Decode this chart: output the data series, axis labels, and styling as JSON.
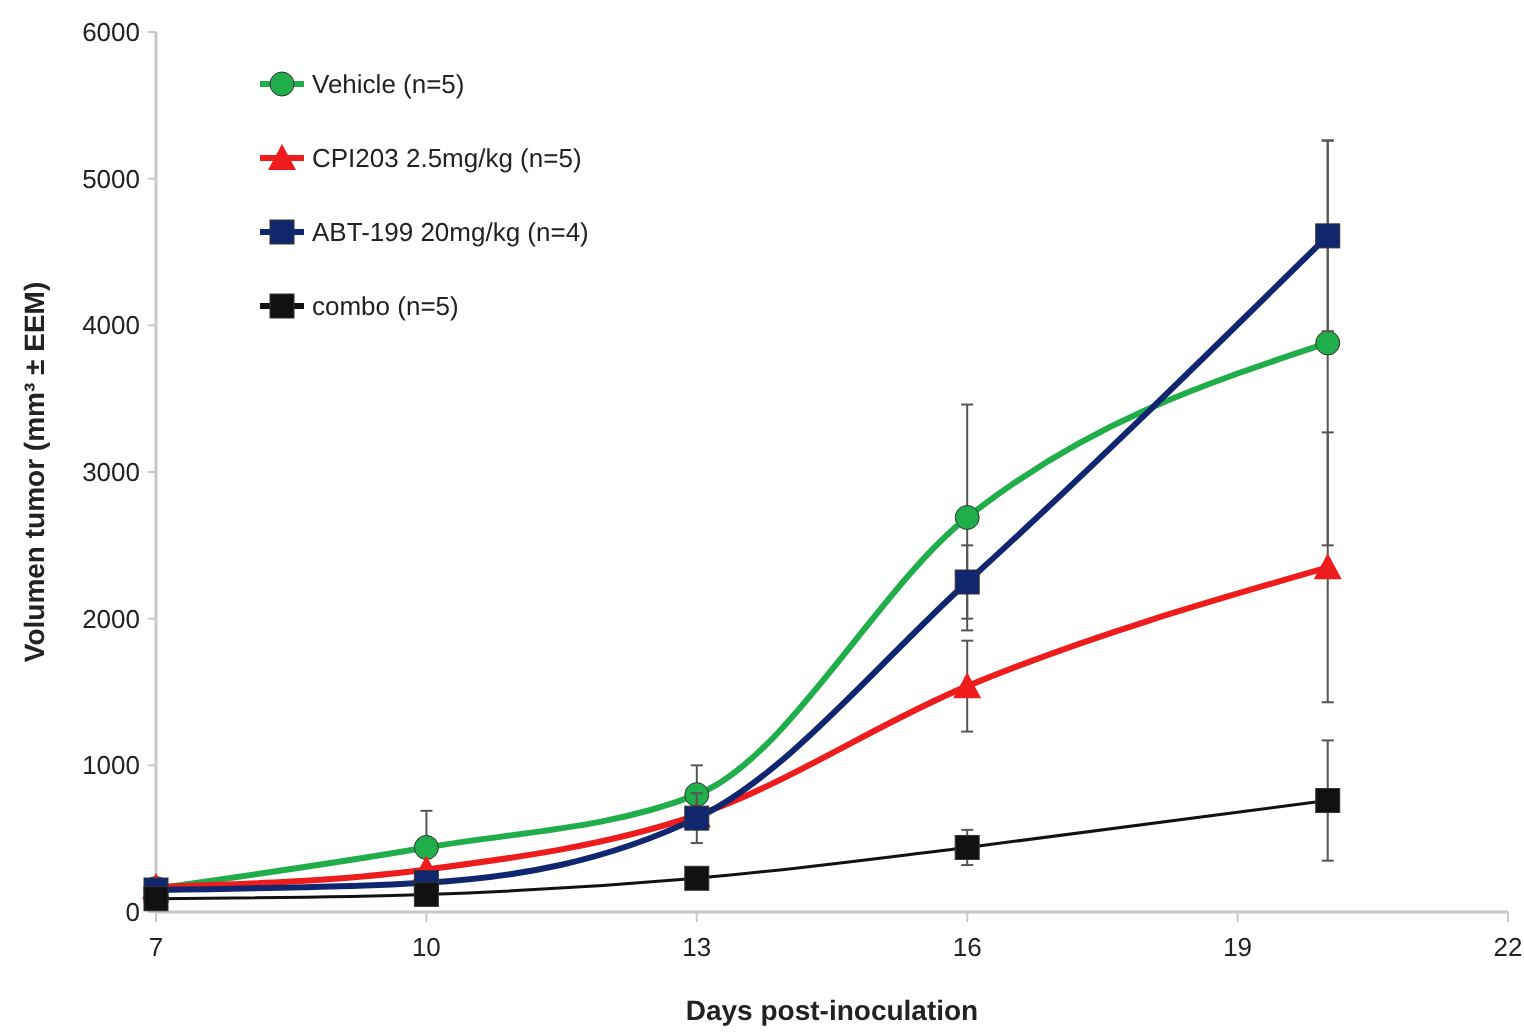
{
  "chart_data": {
    "type": "line",
    "xlabel": "Days post-inoculation",
    "ylabel": "Volumen tumor (mm³ ± EEM)",
    "x": [
      7,
      10,
      13,
      16,
      20
    ],
    "xlim": [
      7,
      22
    ],
    "xticks": [
      7,
      10,
      13,
      16,
      19,
      22
    ],
    "ylim": [
      0,
      6000
    ],
    "yticks": [
      0,
      1000,
      2000,
      3000,
      4000,
      5000,
      6000
    ],
    "grid": false,
    "legend": "top left",
    "series": [
      {
        "name": "Vehicle (n=5)",
        "color": "#1fae4a",
        "marker": "circle",
        "values": [
          160,
          440,
          800,
          2690,
          3880
        ],
        "errors": [
          null,
          250,
          200,
          770,
          1380
        ]
      },
      {
        "name": "CPI203 2.5mg/kg (n=5)",
        "color": "#ee1c1c",
        "marker": "triangle",
        "values": [
          170,
          290,
          660,
          1540,
          2350
        ],
        "errors": [
          null,
          null,
          null,
          310,
          920
        ]
      },
      {
        "name": "ABT-199 20mg/kg (n=4)",
        "color": "#10266e",
        "marker": "square",
        "values": [
          150,
          200,
          640,
          2250,
          4610
        ],
        "errors": [
          null,
          null,
          170,
          250,
          650
        ]
      },
      {
        "name": "combo (n=5)",
        "color": "#111111",
        "marker": "square",
        "values": [
          90,
          120,
          230,
          440,
          760
        ],
        "errors": [
          null,
          null,
          null,
          120,
          410
        ]
      }
    ]
  }
}
